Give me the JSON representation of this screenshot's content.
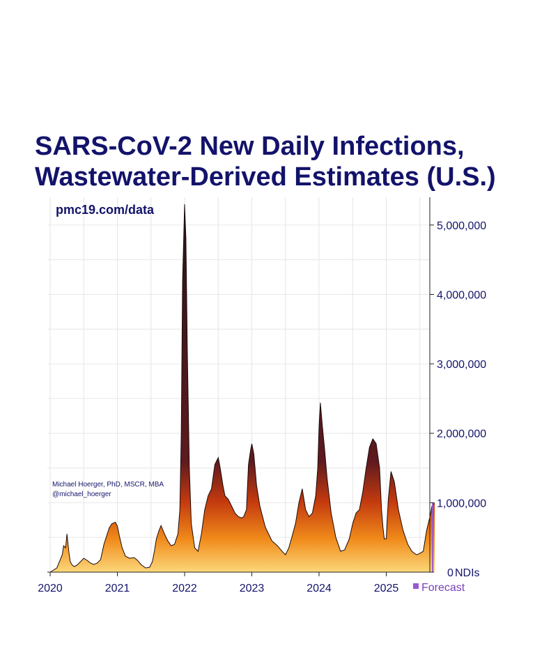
{
  "chart_data": {
    "type": "area",
    "title_lines": [
      "SARS-CoV-2 New Daily Infections,",
      "Wastewater-Derived Estimates (U.S.)"
    ],
    "source": "pmc19.com/data",
    "credit_lines": [
      "Michael Hoerger, PhD, MSCR, MBA",
      "@michael_hoerger"
    ],
    "ylabel": "NDIs",
    "ylim": [
      0,
      5400000
    ],
    "xlim": [
      2020.0,
      2025.72
    ],
    "y_ticks": [
      {
        "value": 0,
        "label": "0"
      },
      {
        "value": 1000000,
        "label": "1,000,000"
      },
      {
        "value": 2000000,
        "label": "2,000,000"
      },
      {
        "value": 3000000,
        "label": "3,000,000"
      },
      {
        "value": 4000000,
        "label": "4,000,000"
      },
      {
        "value": 5000000,
        "label": "5,000,000"
      }
    ],
    "x_ticks": [
      {
        "value": 2020,
        "label": "2020"
      },
      {
        "value": 2021,
        "label": "2021"
      },
      {
        "value": 2022,
        "label": "2022"
      },
      {
        "value": 2023,
        "label": "2023"
      },
      {
        "value": 2024,
        "label": "2024"
      },
      {
        "value": 2025,
        "label": "2025"
      }
    ],
    "legend": {
      "label": "Forecast",
      "color": "#9b59d0",
      "placement": "bottom-right"
    },
    "forecast_start": 2025.68,
    "colors": {
      "low": "#fcd77a",
      "mid_low": "#f08a1a",
      "mid": "#c43a0e",
      "high": "#5e1a1f",
      "top": "#2a1418",
      "outline": "#1a0a0a",
      "text": "#13136b"
    },
    "x": [
      2020.0,
      2020.1,
      2020.18,
      2020.2,
      2020.23,
      2020.25,
      2020.28,
      2020.3,
      2020.33,
      2020.36,
      2020.4,
      2020.45,
      2020.5,
      2020.55,
      2020.6,
      2020.65,
      2020.7,
      2020.75,
      2020.8,
      2020.85,
      2020.88,
      2020.92,
      2020.95,
      2020.97,
      2021.0,
      2021.03,
      2021.07,
      2021.12,
      2021.18,
      2021.25,
      2021.3,
      2021.35,
      2021.42,
      2021.48,
      2021.52,
      2021.55,
      2021.58,
      2021.62,
      2021.65,
      2021.7,
      2021.75,
      2021.8,
      2021.85,
      2021.9,
      2021.93,
      2021.95,
      2021.97,
      2022.0,
      2022.02,
      2022.04,
      2022.07,
      2022.1,
      2022.15,
      2022.2,
      2022.25,
      2022.3,
      2022.35,
      2022.4,
      2022.45,
      2022.5,
      2022.53,
      2022.57,
      2022.6,
      2022.65,
      2022.7,
      2022.75,
      2022.8,
      2022.85,
      2022.88,
      2022.92,
      2022.95,
      2022.98,
      2023.0,
      2023.03,
      2023.07,
      2023.12,
      2023.2,
      2023.3,
      2023.38,
      2023.45,
      2023.5,
      2023.55,
      2023.6,
      2023.65,
      2023.7,
      2023.75,
      2023.8,
      2023.85,
      2023.9,
      2023.95,
      2023.98,
      2024.0,
      2024.02,
      2024.05,
      2024.08,
      2024.12,
      2024.18,
      2024.25,
      2024.32,
      2024.38,
      2024.45,
      2024.5,
      2024.55,
      2024.6,
      2024.65,
      2024.7,
      2024.75,
      2024.8,
      2024.85,
      2024.9,
      2024.93,
      2024.95,
      2024.97,
      2025.0,
      2025.03,
      2025.07,
      2025.12,
      2025.18,
      2025.25,
      2025.32,
      2025.38,
      2025.45,
      2025.5,
      2025.55,
      2025.6,
      2025.65,
      2025.68,
      2025.72
    ],
    "values": [
      0,
      60000,
      250000,
      380000,
      350000,
      550000,
      280000,
      150000,
      100000,
      80000,
      100000,
      150000,
      200000,
      170000,
      130000,
      110000,
      130000,
      180000,
      400000,
      550000,
      640000,
      700000,
      710000,
      720000,
      660000,
      520000,
      350000,
      230000,
      200000,
      210000,
      170000,
      110000,
      60000,
      70000,
      150000,
      300000,
      480000,
      600000,
      670000,
      550000,
      450000,
      380000,
      400000,
      550000,
      900000,
      2000000,
      4200000,
      5300000,
      4800000,
      3200000,
      1500000,
      700000,
      350000,
      300000,
      550000,
      900000,
      1100000,
      1200000,
      1550000,
      1650000,
      1500000,
      1250000,
      1100000,
      1050000,
      950000,
      850000,
      800000,
      780000,
      800000,
      900000,
      1550000,
      1750000,
      1850000,
      1700000,
      1250000,
      950000,
      650000,
      450000,
      380000,
      300000,
      250000,
      350000,
      520000,
      700000,
      1000000,
      1200000,
      900000,
      800000,
      850000,
      1100000,
      1500000,
      2100000,
      2440000,
      2100000,
      1800000,
      1350000,
      850000,
      500000,
      300000,
      320000,
      480000,
      700000,
      850000,
      900000,
      1150000,
      1500000,
      1800000,
      1920000,
      1850000,
      1500000,
      900000,
      650000,
      480000,
      480000,
      1050000,
      1450000,
      1300000,
      900000,
      600000,
      400000,
      300000,
      250000,
      270000,
      300000,
      600000,
      800000,
      950000,
      1000000
    ]
  }
}
